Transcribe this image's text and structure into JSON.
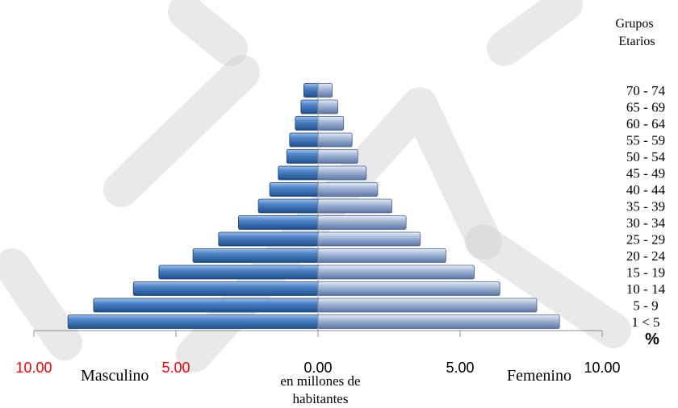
{
  "chart_data": {
    "type": "bar",
    "orientation": "horizontal",
    "title": "",
    "legend_title": [
      "Grupos",
      "Etarios"
    ],
    "categories": [
      "1 < 5",
      "5 - 9",
      "10 - 14",
      "15 - 19",
      "20 - 24",
      "25 - 29",
      "30 - 34",
      "35 - 39",
      "40 - 44",
      "45 - 49",
      "50 - 54",
      "55 - 59",
      "60 - 64",
      "65 - 69",
      "70 - 74"
    ],
    "series": [
      {
        "name": "Masculino",
        "values": [
          8.8,
          7.9,
          6.5,
          5.6,
          4.4,
          3.5,
          2.8,
          2.1,
          1.7,
          1.4,
          1.1,
          1.0,
          0.8,
          0.6,
          0.5
        ],
        "color": "#3f74b8"
      },
      {
        "name": "Femenino",
        "values": [
          8.5,
          7.7,
          6.4,
          5.5,
          4.5,
          3.6,
          3.1,
          2.6,
          2.1,
          1.7,
          1.4,
          1.2,
          0.9,
          0.7,
          0.5
        ],
        "color": "#8da3c9"
      }
    ],
    "xlim": [
      -10,
      10
    ],
    "x_ticks": [
      -10,
      -5,
      0,
      5,
      10
    ],
    "x_tick_labels": [
      "10.00",
      "5.00",
      "0.00",
      "5.00",
      "10.00"
    ],
    "x_tick_colors": [
      "#ff0000",
      "#ff0000",
      "#000000",
      "#000000",
      "#000000"
    ],
    "xlabel": [
      "en millones de",
      "habitantes"
    ],
    "percent_label": "%",
    "side_labels": {
      "left": "Masculino",
      "right": "Femenino"
    },
    "watermark_color": "#cfcfcf"
  }
}
